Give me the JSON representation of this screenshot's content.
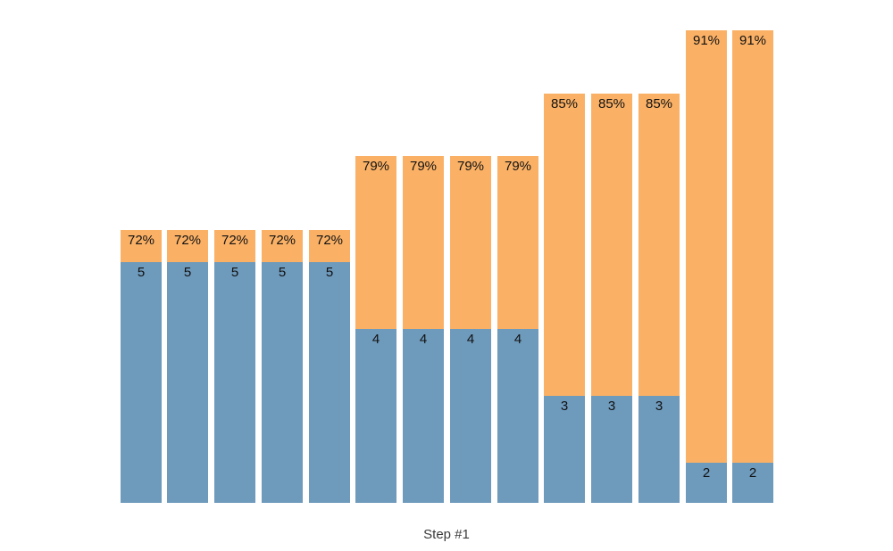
{
  "chart_data": {
    "type": "bar",
    "subtype": "stacked-column",
    "title": "",
    "xlabel": "Step #1",
    "ylabel": "",
    "grid": false,
    "axes_visible": false,
    "legend": "none",
    "colors": {
      "count_segment": "#6E9ABC",
      "percent_segment": "#FAB166",
      "label_text": "#111111",
      "axis_label_text": "#3a3a3a",
      "background": "#ffffff"
    },
    "series": [
      {
        "name": "count",
        "color": "#6E9ABC",
        "values": [
          5,
          5,
          5,
          5,
          5,
          4,
          4,
          4,
          4,
          3,
          3,
          3,
          2,
          2
        ]
      },
      {
        "name": "percent",
        "color": "#FAB166",
        "values": [
          72,
          72,
          72,
          72,
          72,
          79,
          79,
          79,
          79,
          85,
          85,
          85,
          91,
          91
        ]
      }
    ],
    "bars": [
      {
        "count": 5,
        "count_label": "5",
        "percent": 72,
        "percent_label": "72%"
      },
      {
        "count": 5,
        "count_label": "5",
        "percent": 72,
        "percent_label": "72%"
      },
      {
        "count": 5,
        "count_label": "5",
        "percent": 72,
        "percent_label": "72%"
      },
      {
        "count": 5,
        "count_label": "5",
        "percent": 72,
        "percent_label": "72%"
      },
      {
        "count": 5,
        "count_label": "5",
        "percent": 72,
        "percent_label": "72%"
      },
      {
        "count": 4,
        "count_label": "4",
        "percent": 79,
        "percent_label": "79%"
      },
      {
        "count": 4,
        "count_label": "4",
        "percent": 79,
        "percent_label": "79%"
      },
      {
        "count": 4,
        "count_label": "4",
        "percent": 79,
        "percent_label": "79%"
      },
      {
        "count": 4,
        "count_label": "4",
        "percent": 79,
        "percent_label": "79%"
      },
      {
        "count": 3,
        "count_label": "3",
        "percent": 85,
        "percent_label": "85%"
      },
      {
        "count": 3,
        "count_label": "3",
        "percent": 85,
        "percent_label": "85%"
      },
      {
        "count": 3,
        "count_label": "3",
        "percent": 85,
        "percent_label": "85%"
      },
      {
        "count": 2,
        "count_label": "2",
        "percent": 91,
        "percent_label": "91%"
      },
      {
        "count": 2,
        "count_label": "2",
        "percent": 91,
        "percent_label": "91%"
      }
    ]
  }
}
